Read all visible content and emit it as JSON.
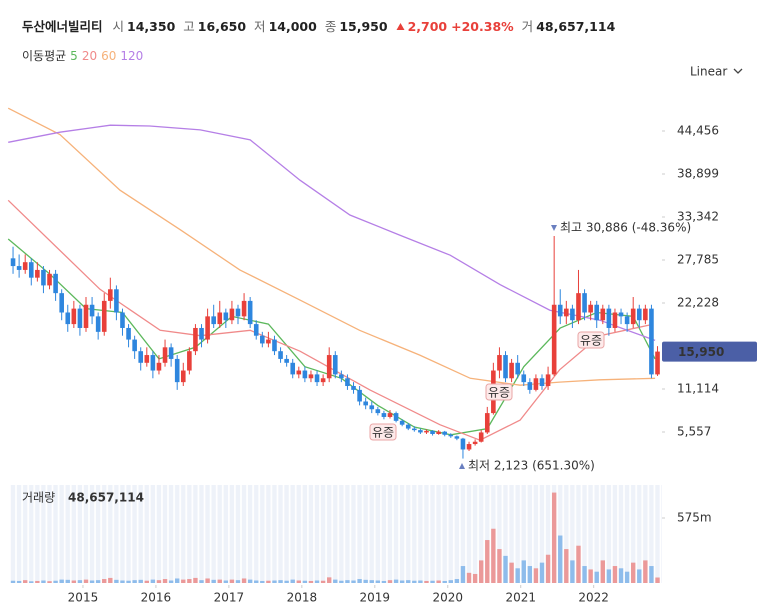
{
  "chart_data": {
    "type": "candlestick",
    "quote": {
      "name": "두산에너빌리티",
      "items": [
        {
          "label": "시",
          "value": "14,350"
        },
        {
          "label": "고",
          "value": "16,650"
        },
        {
          "label": "저",
          "value": "14,000"
        },
        {
          "label": "종",
          "value": "15,950"
        }
      ],
      "change": "2,700",
      "change_pct": "+20.38%",
      "volume_label": "거",
      "volume": "48,657,114"
    },
    "legend_title": "이동평균",
    "scale_mode": "Linear",
    "up_color": "#e8403a",
    "down_color": "#2e86de",
    "candles": [
      [
        28000,
        29500,
        26000,
        27000
      ],
      [
        27000,
        28500,
        25500,
        26500
      ],
      [
        26500,
        28500,
        26000,
        27500
      ],
      [
        27500,
        28000,
        24500,
        25500
      ],
      [
        25500,
        27500,
        25000,
        26500
      ],
      [
        26500,
        27000,
        23500,
        24500
      ],
      [
        24500,
        26500,
        24000,
        26000
      ],
      [
        26000,
        26500,
        22500,
        23500
      ],
      [
        23500,
        24000,
        20000,
        21000
      ],
      [
        21000,
        22000,
        18500,
        19500
      ],
      [
        19500,
        22500,
        19000,
        21500
      ],
      [
        21500,
        22000,
        18000,
        19000
      ],
      [
        19000,
        23000,
        18500,
        22000
      ],
      [
        22000,
        23000,
        19500,
        20500
      ],
      [
        20500,
        21000,
        17500,
        18500
      ],
      [
        18500,
        23500,
        18000,
        22500
      ],
      [
        22500,
        25500,
        21500,
        24000
      ],
      [
        24000,
        24500,
        20000,
        21000
      ],
      [
        21000,
        21500,
        18000,
        19000
      ],
      [
        19000,
        19500,
        16500,
        17500
      ],
      [
        17500,
        18000,
        15000,
        16000
      ],
      [
        16000,
        16500,
        13500,
        14500
      ],
      [
        14500,
        16500,
        14000,
        15500
      ],
      [
        15500,
        16000,
        12500,
        13500
      ],
      [
        13500,
        15500,
        13000,
        14500
      ],
      [
        14500,
        17500,
        14000,
        16500
      ],
      [
        16500,
        17000,
        14000,
        15000
      ],
      [
        15000,
        15500,
        11000,
        12000
      ],
      [
        12000,
        14500,
        11500,
        13500
      ],
      [
        13500,
        16500,
        13000,
        16000
      ],
      [
        16000,
        19500,
        15500,
        19000
      ],
      [
        19000,
        19500,
        16500,
        17500
      ],
      [
        17500,
        21500,
        17000,
        20500
      ],
      [
        20500,
        22000,
        19000,
        19500
      ],
      [
        19500,
        22500,
        19000,
        21000
      ],
      [
        21000,
        21500,
        19000,
        20000
      ],
      [
        20000,
        22500,
        19500,
        21500
      ],
      [
        21500,
        22000,
        19500,
        20500
      ],
      [
        20500,
        23500,
        20000,
        22500
      ],
      [
        22500,
        23000,
        19000,
        19500
      ],
      [
        19500,
        20000,
        17500,
        18000
      ],
      [
        18000,
        18500,
        16500,
        17000
      ],
      [
        17000,
        18500,
        16500,
        17500
      ],
      [
        17500,
        18000,
        15500,
        16000
      ],
      [
        16000,
        16500,
        14500,
        15000
      ],
      [
        15000,
        15500,
        14000,
        14500
      ],
      [
        14500,
        15000,
        12500,
        13000
      ],
      [
        13000,
        14000,
        12500,
        13500
      ],
      [
        13500,
        14000,
        12000,
        12500
      ],
      [
        12500,
        13500,
        12000,
        13000
      ],
      [
        13000,
        13500,
        11500,
        12000
      ],
      [
        12000,
        13000,
        11500,
        12500
      ],
      [
        12500,
        16500,
        12000,
        15500
      ],
      [
        15500,
        16000,
        12500,
        13000
      ],
      [
        13000,
        13500,
        12000,
        12500
      ],
      [
        12500,
        13000,
        11000,
        11500
      ],
      [
        11500,
        12000,
        10500,
        11000
      ],
      [
        11000,
        11500,
        9000,
        9500
      ],
      [
        9500,
        10000,
        8500,
        9000
      ],
      [
        9000,
        9500,
        8000,
        8500
      ],
      [
        8500,
        8800,
        7700,
        8000
      ],
      [
        8000,
        8300,
        7200,
        7500
      ],
      [
        7500,
        8400,
        7300,
        8000
      ],
      [
        8000,
        8200,
        6800,
        7000
      ],
      [
        7000,
        7200,
        6300,
        6500
      ],
      [
        6500,
        6700,
        5800,
        6000
      ],
      [
        6000,
        6300,
        5600,
        5800
      ],
      [
        5800,
        6000,
        5300,
        5500
      ],
      [
        5500,
        5900,
        5300,
        5700
      ],
      [
        5700,
        5800,
        5100,
        5300
      ],
      [
        5300,
        5800,
        5200,
        5600
      ],
      [
        5600,
        5700,
        5000,
        5200
      ],
      [
        5200,
        5400,
        4800,
        5000
      ],
      [
        5000,
        5100,
        4500,
        4700
      ],
      [
        4700,
        4800,
        2123,
        3300
      ],
      [
        3300,
        4300,
        3100,
        4000
      ],
      [
        4000,
        4600,
        3800,
        4300
      ],
      [
        4300,
        5800,
        4200,
        5500
      ],
      [
        5500,
        8800,
        5300,
        8000
      ],
      [
        8000,
        14500,
        7800,
        13500
      ],
      [
        13500,
        16500,
        12500,
        15500
      ],
      [
        15500,
        16000,
        12000,
        12500
      ],
      [
        12500,
        15000,
        12000,
        14500
      ],
      [
        14500,
        15500,
        12500,
        13000
      ],
      [
        13000,
        13500,
        11500,
        12000
      ],
      [
        12000,
        12500,
        10500,
        11000
      ],
      [
        11000,
        13000,
        10800,
        12500
      ],
      [
        12500,
        13000,
        11000,
        11500
      ],
      [
        11500,
        14000,
        11000,
        13000
      ],
      [
        13000,
        30886,
        12800,
        22000
      ],
      [
        22000,
        24000,
        19500,
        20500
      ],
      [
        20500,
        22500,
        19500,
        21500
      ],
      [
        21500,
        22000,
        19000,
        20000
      ],
      [
        20000,
        26500,
        19500,
        23500
      ],
      [
        23500,
        24000,
        20000,
        21000
      ],
      [
        21000,
        22500,
        20000,
        22000
      ],
      [
        22000,
        22500,
        19000,
        20000
      ],
      [
        20000,
        22000,
        19500,
        21500
      ],
      [
        21500,
        22000,
        18000,
        19000
      ],
      [
        19000,
        21500,
        18500,
        21000
      ],
      [
        21000,
        21500,
        19500,
        20500
      ],
      [
        20500,
        21000,
        18500,
        19500
      ],
      [
        19500,
        23000,
        19000,
        21500
      ],
      [
        21500,
        22000,
        19000,
        20000
      ],
      [
        20000,
        22000,
        19500,
        21500
      ],
      [
        21500,
        22000,
        12500,
        13000
      ],
      [
        13000,
        16650,
        12800,
        15950
      ]
    ],
    "volume": [
      20,
      18,
      25,
      15,
      18,
      22,
      16,
      20,
      30,
      28,
      22,
      25,
      30,
      22,
      25,
      35,
      45,
      28,
      22,
      20,
      25,
      28,
      20,
      30,
      25,
      35,
      22,
      40,
      30,
      35,
      45,
      25,
      40,
      28,
      30,
      22,
      30,
      25,
      40,
      30,
      22,
      18,
      20,
      22,
      25,
      20,
      30,
      22,
      20,
      18,
      22,
      20,
      50,
      30,
      20,
      25,
      22,
      35,
      28,
      25,
      22,
      18,
      25,
      30,
      22,
      25,
      20,
      22,
      18,
      20,
      22,
      18,
      25,
      35,
      150,
      90,
      80,
      200,
      380,
      480,
      300,
      240,
      180,
      130,
      200,
      150,
      130,
      180,
      250,
      800,
      420,
      300,
      200,
      330,
      150,
      120,
      100,
      200,
      120,
      150,
      130,
      100,
      180,
      120,
      200,
      150,
      48.657114
    ],
    "volume_title": "거래량",
    "volume_last_label": "48,657,114",
    "series": [
      {
        "name": "5",
        "color": "#5cb85c",
        "x": [
          -0.8,
          6,
          12,
          18,
          24,
          30,
          36,
          42,
          48,
          54,
          60,
          66,
          72,
          78,
          84,
          90,
          96,
          102,
          105.6
        ],
        "values": [
          30500,
          26000,
          21500,
          21000,
          15000,
          16500,
          20500,
          19500,
          14000,
          12500,
          9000,
          6200,
          5200,
          6000,
          14000,
          19000,
          21000,
          20500,
          15000
        ]
      },
      {
        "name": "20",
        "color": "#f08a8a",
        "x": [
          -0.8,
          14.3,
          24.2,
          30.8,
          39,
          47.2,
          58.7,
          70.2,
          76.8,
          83.4,
          89.9,
          96.5,
          104.8
        ],
        "values": [
          35500,
          24000,
          18700,
          18000,
          18700,
          16000,
          11000,
          6500,
          4500,
          7100,
          13600,
          18000,
          19400
        ]
      },
      {
        "name": "60",
        "color": "#f6b27a",
        "x": [
          -0.8,
          7.7,
          17.6,
          27.5,
          37.3,
          47.2,
          57,
          66.9,
          75.2,
          83.4,
          89.9,
          96.5,
          105.6
        ],
        "values": [
          47400,
          44000,
          36800,
          31700,
          26500,
          22600,
          18700,
          15500,
          12500,
          11600,
          12000,
          12300,
          12500
        ]
      },
      {
        "name": "120",
        "color": "#b57fe6",
        "x": [
          -0.8,
          7.7,
          16,
          22.5,
          30.8,
          39,
          47.2,
          55.4,
          63.6,
          71.9,
          80.1,
          88.3,
          96.5,
          105.6
        ],
        "values": [
          43000,
          44300,
          45200,
          45100,
          44600,
          43300,
          38100,
          33600,
          31000,
          28400,
          24600,
          21300,
          20000,
          17400
        ]
      }
    ],
    "annotations": [
      "유증",
      "유증",
      "유증"
    ],
    "high_label": "최고 30,886 (-48.36%)",
    "low_label": "최저 2,123 (651.30%)",
    "ylim": [
      0,
      48460
    ],
    "yticks": [
      {
        "value": 5557,
        "label": "5,557"
      },
      {
        "value": 11114,
        "label": "11,114"
      },
      {
        "value": 22228,
        "label": "22,228"
      },
      {
        "value": 27785,
        "label": "27,785"
      },
      {
        "value": 33342,
        "label": "33,342"
      },
      {
        "value": 38899,
        "label": "38,899"
      },
      {
        "value": 44456,
        "label": "44,456"
      }
    ],
    "volume_ylim": [
      0,
      867
    ],
    "volume_yticks": [
      {
        "value": 575,
        "label": "575m"
      }
    ],
    "xticks": [
      {
        "value": 12,
        "label": "2015"
      },
      {
        "value": 24,
        "label": "2016"
      },
      {
        "value": 36,
        "label": "2017"
      },
      {
        "value": 48,
        "label": "2018"
      },
      {
        "value": 60,
        "label": "2019"
      },
      {
        "value": 72,
        "label": "2020"
      },
      {
        "value": 84,
        "label": "2021"
      },
      {
        "value": 96,
        "label": "2022"
      }
    ]
  }
}
